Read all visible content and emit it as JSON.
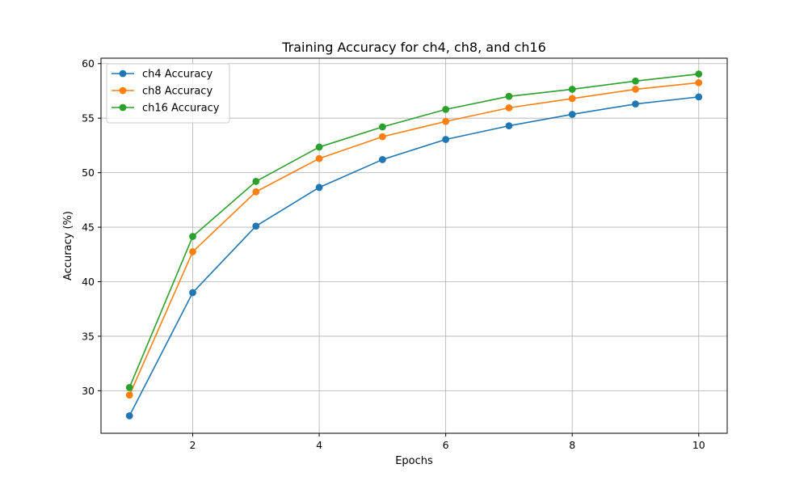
{
  "chart_data": {
    "type": "line",
    "title": "Training Accuracy for ch4, ch8, and ch16",
    "xlabel": "Epochs",
    "ylabel": "Accuracy (%)",
    "x": [
      1,
      2,
      3,
      4,
      5,
      6,
      7,
      8,
      9,
      10
    ],
    "xlim": [
      0.55,
      10.45
    ],
    "ylim": [
      26.1,
      60.5
    ],
    "xticks": [
      2,
      4,
      6,
      8,
      10
    ],
    "yticks": [
      30,
      35,
      40,
      45,
      50,
      55,
      60
    ],
    "grid": true,
    "legend_position": "upper-left",
    "series": [
      {
        "name": "ch4 Accuracy",
        "color": "#1f77b4",
        "marker": "circle",
        "values": [
          27.7,
          39.0,
          45.1,
          48.65,
          51.2,
          53.05,
          54.3,
          55.35,
          56.3,
          56.95
        ]
      },
      {
        "name": "ch8 Accuracy",
        "color": "#ff7f0e",
        "marker": "circle",
        "values": [
          29.6,
          42.75,
          48.25,
          51.3,
          53.3,
          54.7,
          55.95,
          56.8,
          57.65,
          58.25
        ]
      },
      {
        "name": "ch16 Accuracy",
        "color": "#2ca02c",
        "marker": "circle",
        "values": [
          30.3,
          44.15,
          49.2,
          52.35,
          54.2,
          55.8,
          57.0,
          57.65,
          58.4,
          59.05
        ]
      }
    ]
  }
}
